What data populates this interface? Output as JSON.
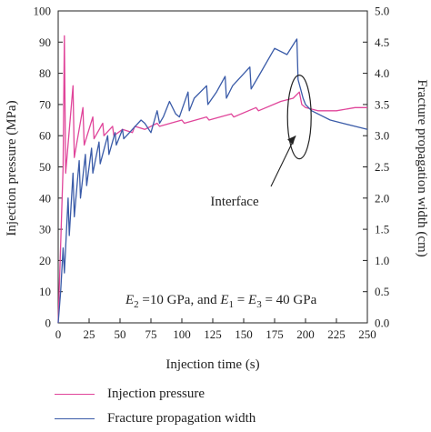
{
  "chart_data": {
    "type": "line",
    "xlabel": "Injection time (s)",
    "ylabel_left": "Injection pressure (MPa)",
    "ylabel_right": "Fracture propagation width (cm)",
    "xlim": [
      0,
      250
    ],
    "ylim_left": [
      0,
      100
    ],
    "ylim_right": [
      0.0,
      5.0
    ],
    "x_ticks": [
      0,
      25,
      50,
      75,
      100,
      125,
      150,
      175,
      200,
      225,
      250
    ],
    "y_ticks_left": [
      0,
      10,
      20,
      30,
      40,
      50,
      60,
      70,
      80,
      90,
      100
    ],
    "y_ticks_right": [
      "0.0",
      "0.5",
      "1.0",
      "1.5",
      "2.0",
      "2.5",
      "3.0",
      "3.5",
      "4.0",
      "4.5",
      "5.0"
    ],
    "grid": false,
    "legend_position": "below",
    "series": [
      {
        "name": "Injection pressure",
        "axis": "left",
        "color": "#e0459a",
        "x": [
          0,
          4,
          5,
          6,
          12,
          13,
          20,
          21,
          28,
          29,
          36,
          37,
          44,
          45,
          52,
          60,
          62,
          70,
          80,
          82,
          100,
          102,
          120,
          122,
          140,
          142,
          160,
          162,
          180,
          190,
          195,
          197,
          200,
          210,
          225,
          240,
          250
        ],
        "y": [
          0,
          50,
          92,
          48,
          76,
          53,
          69,
          57,
          66,
          59,
          64,
          60,
          63,
          60,
          62,
          61,
          63,
          62,
          64,
          63,
          65,
          64,
          66,
          65,
          67,
          66,
          69,
          68,
          71,
          72,
          74,
          70,
          69,
          68,
          68,
          69,
          69
        ]
      },
      {
        "name": "Fracture propagation width",
        "axis": "right",
        "color": "#3a5ba8",
        "x": [
          0,
          2,
          4,
          5,
          8,
          9,
          12,
          13,
          17,
          18,
          22,
          23,
          27,
          28,
          33,
          34,
          40,
          41,
          46,
          47,
          52,
          53,
          60,
          67,
          70,
          75,
          80,
          82,
          85,
          90,
          95,
          98,
          105,
          106,
          110,
          120,
          121,
          128,
          135,
          136,
          141,
          155,
          156,
          162,
          175,
          185,
          193,
          194,
          196,
          198,
          200,
          205,
          210,
          220,
          230,
          240,
          250
        ],
        "y": [
          0.0,
          0.5,
          1.2,
          0.8,
          2.0,
          1.4,
          2.4,
          1.7,
          2.6,
          2.0,
          2.7,
          2.2,
          2.8,
          2.4,
          2.9,
          2.55,
          3.0,
          2.7,
          3.05,
          2.85,
          3.1,
          2.95,
          3.1,
          3.25,
          3.2,
          3.05,
          3.4,
          3.2,
          3.3,
          3.55,
          3.35,
          3.3,
          3.7,
          3.4,
          3.6,
          3.8,
          3.5,
          3.7,
          3.95,
          3.6,
          3.8,
          4.1,
          3.75,
          3.95,
          4.4,
          4.3,
          4.55,
          3.9,
          3.75,
          3.6,
          3.5,
          3.4,
          3.35,
          3.25,
          3.2,
          3.15,
          3.1
        ]
      }
    ]
  },
  "annotations": {
    "interface_label": "Interface",
    "condition_parts": [
      "E",
      "2",
      " =10 GPa, and ",
      "E",
      "1",
      " = ",
      "E",
      "3",
      " = 40 GPa"
    ]
  }
}
